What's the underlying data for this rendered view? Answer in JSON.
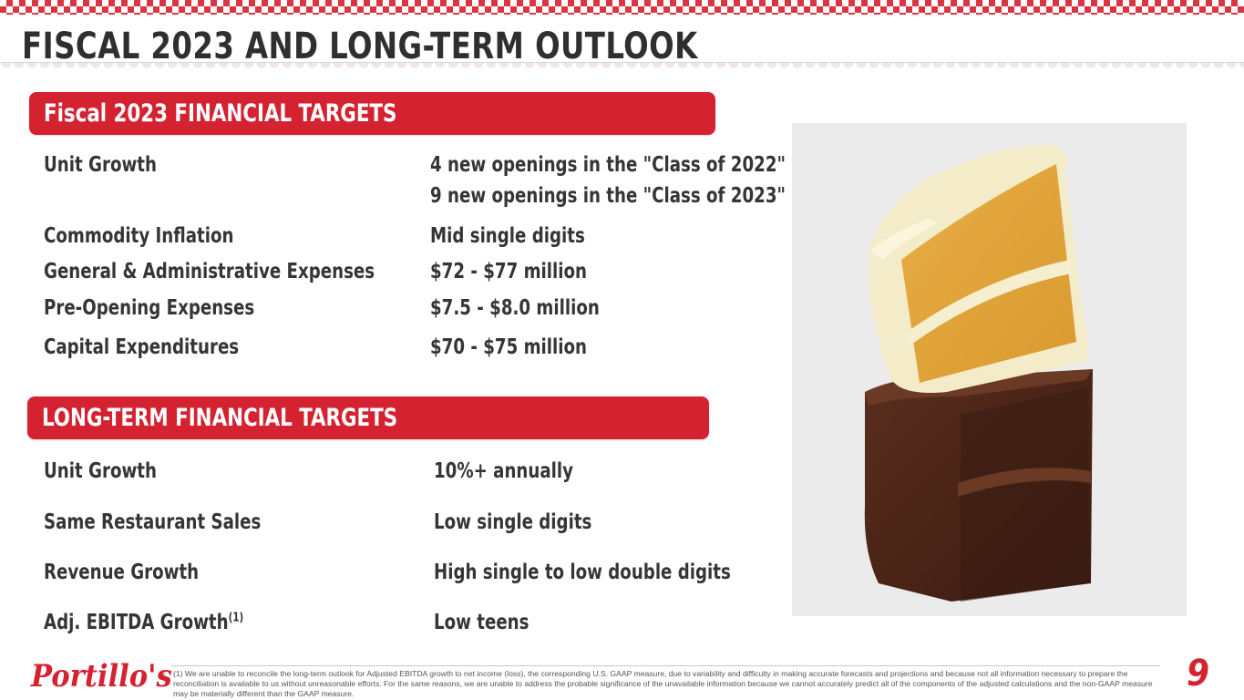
{
  "title": "FISCAL 2023 AND LONG-TERM OUTLOOK",
  "fiscal": {
    "heading": "Fiscal 2023 FINANCIAL TARGETS",
    "rows": [
      {
        "label": "Unit Growth",
        "value": "4 new openings in the \"Class of 2022\"",
        "value2": "9 new openings in the \"Class of 2023\""
      },
      {
        "label": "Commodity Inflation",
        "value": "Mid single digits"
      },
      {
        "label": "General & Administrative Expenses",
        "value": "$72 - $77 million"
      },
      {
        "label": "Pre-Opening Expenses",
        "value": "$7.5 - $8.0 million"
      },
      {
        "label": "Capital Expenditures",
        "value": "$70 - $75 million"
      }
    ]
  },
  "longterm": {
    "heading": "LONG-TERM FINANCIAL TARGETS",
    "rows": [
      {
        "label": "Unit Growth",
        "value": "10%+ annually"
      },
      {
        "label": "Same Restaurant Sales",
        "value": "Low single digits"
      },
      {
        "label": "Revenue Growth",
        "value": "High single to low double digits"
      },
      {
        "label": "Adj. EBITDA Growth",
        "sup": "(1)",
        "value": "Low teens"
      }
    ]
  },
  "footer": {
    "logo": "Portillo's",
    "registered": "®",
    "footnote": "(1) We are unable to reconcile the long-term outlook for Adjusted EBITDA growth to net income (loss), the corresponding U.S. GAAP measure, due to variability and difficulty in making accurate forecasts and projections and because not all information necessary to prepare the reconciliation is available to us without unreasonable efforts. For the same reasons, we are unable to address the probable significance of the unavailable information because we cannot accurately predict all of the components of the adjusted calculations and the non-GAAP measure may be materially different than the GAAP measure.",
    "page_number": "9"
  },
  "colors": {
    "brand_red": "#d42231",
    "text": "#353535"
  },
  "image": {
    "subject": "cake-slice-photo"
  }
}
